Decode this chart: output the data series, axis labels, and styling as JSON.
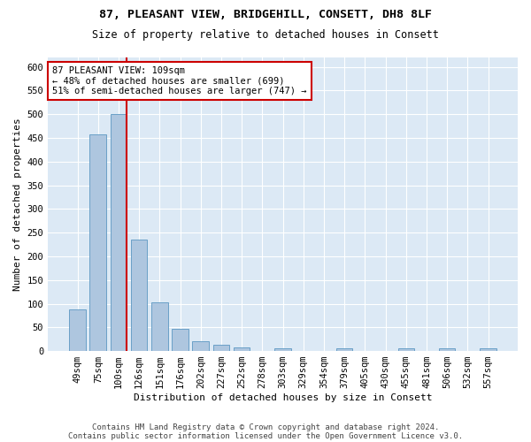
{
  "title1": "87, PLEASANT VIEW, BRIDGEHILL, CONSETT, DH8 8LF",
  "title2": "Size of property relative to detached houses in Consett",
  "xlabel": "Distribution of detached houses by size in Consett",
  "ylabel": "Number of detached properties",
  "footer1": "Contains HM Land Registry data © Crown copyright and database right 2024.",
  "footer2": "Contains public sector information licensed under the Open Government Licence v3.0.",
  "categories": [
    "49sqm",
    "75sqm",
    "100sqm",
    "126sqm",
    "151sqm",
    "176sqm",
    "202sqm",
    "227sqm",
    "252sqm",
    "278sqm",
    "303sqm",
    "329sqm",
    "354sqm",
    "379sqm",
    "405sqm",
    "430sqm",
    "455sqm",
    "481sqm",
    "506sqm",
    "532sqm",
    "557sqm"
  ],
  "values": [
    88,
    458,
    500,
    235,
    103,
    47,
    20,
    14,
    8,
    0,
    5,
    0,
    0,
    5,
    0,
    0,
    5,
    0,
    5,
    0,
    5
  ],
  "bar_color": "#aec6df",
  "bar_edge_color": "#6aa0c7",
  "vline_x_idx": 2,
  "vline_color": "#cc0000",
  "annotation_text": "87 PLEASANT VIEW: 109sqm\n← 48% of detached houses are smaller (699)\n51% of semi-detached houses are larger (747) →",
  "annotation_box_color": "#ffffff",
  "annotation_box_edge": "#cc0000",
  "ylim": [
    0,
    620
  ],
  "yticks": [
    0,
    50,
    100,
    150,
    200,
    250,
    300,
    350,
    400,
    450,
    500,
    550,
    600
  ],
  "plot_bg_color": "#dce9f5",
  "title1_fontsize": 9.5,
  "title2_fontsize": 8.5,
  "xlabel_fontsize": 8,
  "ylabel_fontsize": 8,
  "tick_fontsize": 7.5,
  "footer_fontsize": 6.5,
  "annotation_fontsize": 7.5
}
